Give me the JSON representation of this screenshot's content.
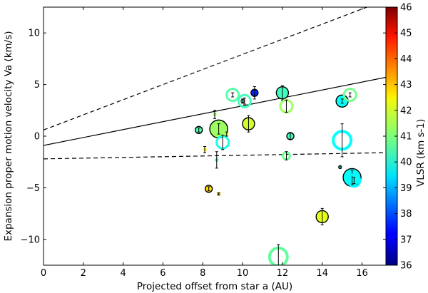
{
  "chart_data": {
    "type": "scatter",
    "xlabel": "Projected offset from star a (AU)",
    "ylabel": "Expansion proper motion velocity Va (km/s)",
    "xlim": [
      0,
      17.2
    ],
    "ylim": [
      -12.5,
      12.5
    ],
    "xticks": [
      0,
      2,
      4,
      6,
      8,
      10,
      12,
      14,
      16
    ],
    "yticks": [
      -10,
      -5,
      0,
      5,
      10
    ],
    "colorbar": {
      "label": "VLSR (km s-1)",
      "min": 36,
      "max": 46,
      "ticks": [
        36,
        37,
        38,
        39,
        40,
        41,
        42,
        43,
        44,
        45,
        46
      ]
    },
    "lines": [
      {
        "name": "fit",
        "style": "solid",
        "x": [
          0,
          17.2
        ],
        "y": [
          -0.9,
          5.7
        ]
      },
      {
        "name": "upper bound",
        "style": "dashed",
        "x": [
          0,
          17.2
        ],
        "y": [
          0.6,
          13.2
        ]
      },
      {
        "name": "lower bound",
        "style": "dashed",
        "x": [
          0,
          17.2
        ],
        "y": [
          -2.2,
          -1.6
        ]
      }
    ],
    "points": [
      {
        "x": 7.8,
        "y": 0.6,
        "size": "small",
        "vlsr": 40.5,
        "err": 0.2,
        "edge": "black"
      },
      {
        "x": 8.1,
        "y": -1.3,
        "size": "tiny",
        "vlsr": 42.3,
        "err": 0.3,
        "edge": "none"
      },
      {
        "x": 8.3,
        "y": -5.1,
        "size": "small",
        "vlsr": 42.6,
        "err": 0.2,
        "edge": "black"
      },
      {
        "x": 8.6,
        "y": 2.1,
        "size": "tiny",
        "vlsr": 41.3,
        "err": 0.4,
        "edge": "none"
      },
      {
        "x": 8.8,
        "y": -5.6,
        "size": "tiny",
        "vlsr": 43.0,
        "err": 0.1,
        "edge": "none"
      },
      {
        "x": 8.7,
        "y": -2.3,
        "size": "tiny",
        "vlsr": 40.5,
        "err": 0.8,
        "edge": "none"
      },
      {
        "x": 8.8,
        "y": 0.7,
        "size": "large",
        "vlsr": 41.3,
        "err": 0.5,
        "edge": "black"
      },
      {
        "x": 9.0,
        "y": -0.6,
        "size": "medium",
        "vlsr": 40.0,
        "err": 0.7,
        "edge": "none"
      },
      {
        "x": 9.2,
        "y": 0.2,
        "size": "tiny",
        "vlsr": 42.3,
        "err": 0.2,
        "edge": "none"
      },
      {
        "x": 9.5,
        "y": 4.0,
        "size": "medium",
        "vlsr": 40.6,
        "err": 0.2,
        "edge": "none"
      },
      {
        "x": 10.1,
        "y": 3.4,
        "size": "medium",
        "vlsr": 40.4,
        "err": 0.3,
        "edge": "none"
      },
      {
        "x": 10.0,
        "y": 3.4,
        "size": "tiny",
        "vlsr": 40.7,
        "err": 0.2,
        "edge": "black"
      },
      {
        "x": 10.3,
        "y": 1.2,
        "size": "medium",
        "vlsr": 41.8,
        "err": 0.8,
        "edge": "black"
      },
      {
        "x": 10.6,
        "y": 4.2,
        "size": "small",
        "vlsr": 37.6,
        "err": 0.6,
        "edge": "black"
      },
      {
        "x": 12.0,
        "y": 4.2,
        "size": "medium",
        "vlsr": 40.4,
        "err": 0.7,
        "edge": "black"
      },
      {
        "x": 12.2,
        "y": 2.9,
        "size": "medium",
        "vlsr": 41.3,
        "err": 0.6,
        "edge": "none"
      },
      {
        "x": 12.2,
        "y": -1.9,
        "size": "small",
        "vlsr": 40.8,
        "err": 0.4,
        "edge": "none"
      },
      {
        "x": 12.4,
        "y": 0.0,
        "size": "small",
        "vlsr": 40.4,
        "err": 0.3,
        "edge": "black"
      },
      {
        "x": 11.8,
        "y": -11.7,
        "size": "large",
        "vlsr": 40.7,
        "err": 1.2,
        "edge": "none"
      },
      {
        "x": 14.0,
        "y": -7.8,
        "size": "medium",
        "vlsr": 42.0,
        "err": 0.8,
        "edge": "black"
      },
      {
        "x": 15.0,
        "y": 3.4,
        "size": "medium",
        "vlsr": 39.8,
        "err": 0.2,
        "edge": "black"
      },
      {
        "x": 15.0,
        "y": -0.4,
        "size": "large",
        "vlsr": 39.8,
        "err": 1.6,
        "edge": "none"
      },
      {
        "x": 14.9,
        "y": -3.0,
        "size": "tiny",
        "vlsr": 40.2,
        "err": 0.1,
        "edge": "black"
      },
      {
        "x": 15.4,
        "y": 4.0,
        "size": "medium",
        "vlsr": 40.9,
        "err": 0.2,
        "edge": "none"
      },
      {
        "x": 15.5,
        "y": -4.0,
        "size": "large",
        "vlsr": 39.8,
        "err": 0.7,
        "edge": "black"
      },
      {
        "x": 15.6,
        "y": -4.3,
        "size": "medium",
        "vlsr": 39.7,
        "err": 0.3,
        "edge": "none"
      }
    ]
  }
}
